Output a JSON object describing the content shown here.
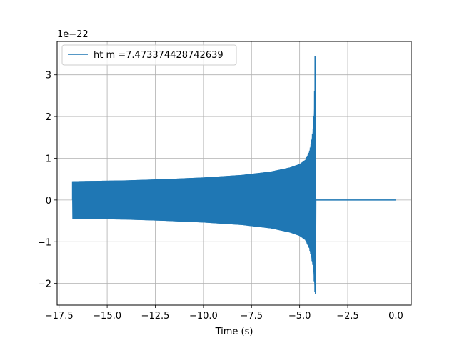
{
  "chart_data": {
    "type": "line",
    "title": "",
    "xlabel": "Time (s)",
    "ylabel": "",
    "offset_text": "1e−22",
    "xlim": [
      -17.6,
      0.8
    ],
    "ylim": [
      -2.52,
      3.8
    ],
    "xticks": [
      -17.5,
      -15.0,
      -12.5,
      -10.0,
      -7.5,
      -5.0,
      -2.5,
      0.0
    ],
    "xtick_labels": [
      "−17.5",
      "−15.0",
      "−12.5",
      "−10.0",
      "−7.5",
      "−5.0",
      "−2.5",
      "0.0"
    ],
    "yticks": [
      -2,
      -1,
      0,
      1,
      2,
      3
    ],
    "ytick_labels": [
      "−2",
      "−1",
      "0",
      "1",
      "2",
      "3"
    ],
    "grid": true,
    "legend_position": "top-left",
    "series": [
      {
        "name": "ht m =7.473374428742639",
        "color": "#1f77b4",
        "start_time": -16.8,
        "merger_time": -4.2,
        "end_time": 0.0,
        "initial_amplitude": 0.45,
        "peak_max": 3.45,
        "peak_min": -2.25,
        "envelope_upper": [
          [
            -16.8,
            0.45
          ],
          [
            -14.0,
            0.47
          ],
          [
            -12.0,
            0.5
          ],
          [
            -10.0,
            0.54
          ],
          [
            -8.0,
            0.6
          ],
          [
            -6.5,
            0.68
          ],
          [
            -5.5,
            0.78
          ],
          [
            -5.0,
            0.86
          ],
          [
            -4.7,
            0.96
          ],
          [
            -4.5,
            1.15
          ],
          [
            -4.4,
            1.35
          ],
          [
            -4.3,
            1.7
          ],
          [
            -4.25,
            2.1
          ],
          [
            -4.22,
            2.7
          ],
          [
            -4.2,
            3.45
          ]
        ],
        "envelope_lower": [
          [
            -16.8,
            -0.45
          ],
          [
            -14.0,
            -0.47
          ],
          [
            -12.0,
            -0.5
          ],
          [
            -10.0,
            -0.54
          ],
          [
            -8.0,
            -0.6
          ],
          [
            -6.5,
            -0.68
          ],
          [
            -5.5,
            -0.78
          ],
          [
            -5.0,
            -0.86
          ],
          [
            -4.7,
            -0.96
          ],
          [
            -4.5,
            -1.15
          ],
          [
            -4.4,
            -1.35
          ],
          [
            -4.3,
            -1.6
          ],
          [
            -4.25,
            -1.9
          ],
          [
            -4.22,
            -2.1
          ],
          [
            -4.2,
            -2.25
          ]
        ]
      }
    ]
  }
}
